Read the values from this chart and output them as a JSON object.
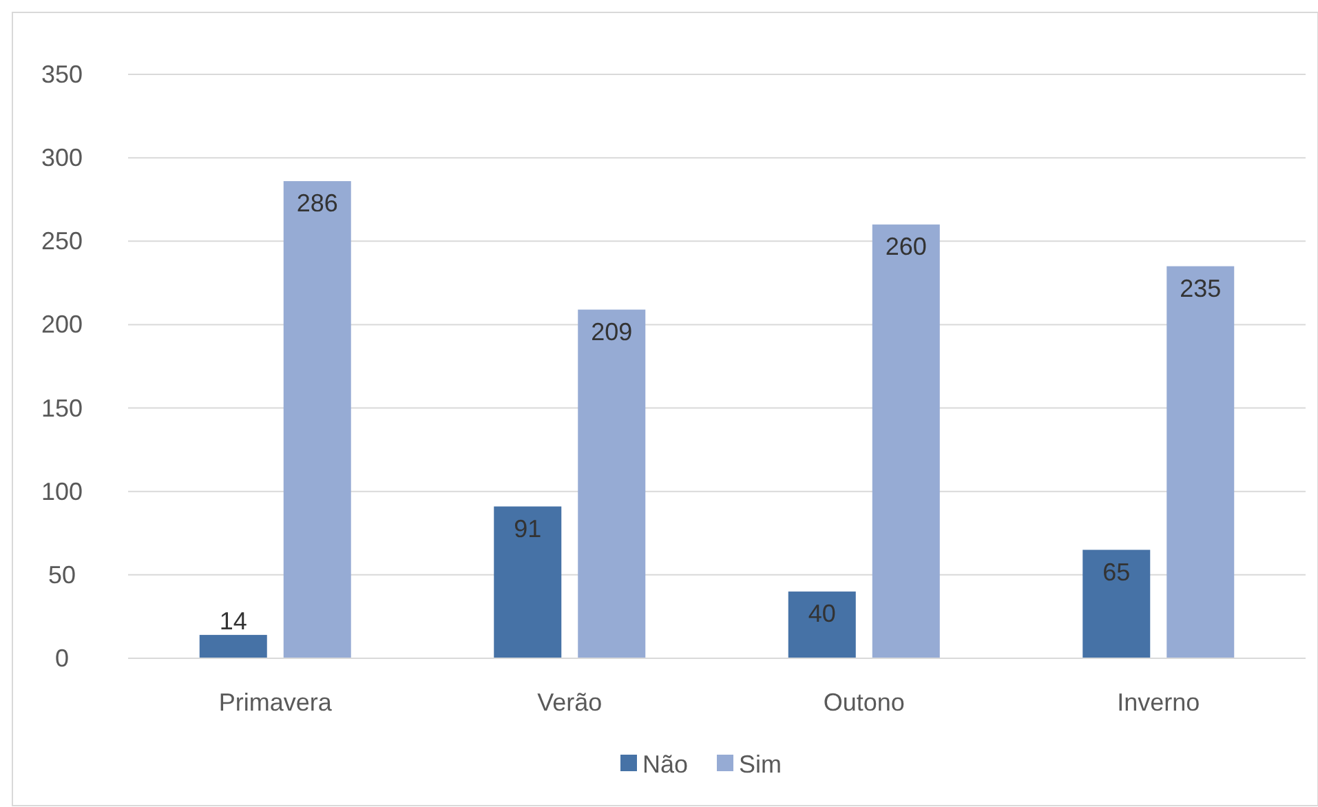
{
  "chart_data": {
    "type": "bar",
    "categories": [
      "Primavera",
      "Verão",
      "Outono",
      "Inverno"
    ],
    "series": [
      {
        "name": "Não",
        "color": "#4672a6",
        "values": [
          14,
          91,
          40,
          65
        ]
      },
      {
        "name": "Sim",
        "color": "#96abd4",
        "values": [
          286,
          209,
          260,
          235
        ]
      }
    ],
    "ylim": [
      0,
      350
    ],
    "yticks": [
      0,
      50,
      100,
      150,
      200,
      250,
      300,
      350
    ],
    "grid": "y",
    "legend": "bottom",
    "data_labels": true
  }
}
